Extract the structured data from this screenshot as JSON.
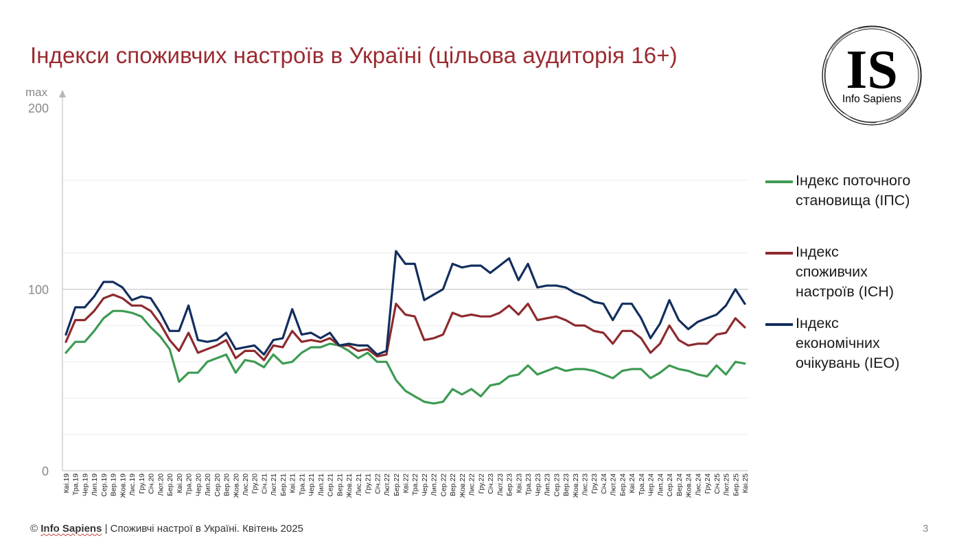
{
  "title": "Індекси споживчих настроїв в Україні (цільова аудиторія 16+)",
  "logo": {
    "text": "IS",
    "subtitle": "Info Sapiens"
  },
  "footer": {
    "brand": "Info Sapiens",
    "rest": " | Споживчі настрої в Україні. Квітень 2025",
    "copyright": "© "
  },
  "page_number": "3",
  "colors": {
    "ips": "#3d9b52",
    "ich": "#8e2a2e",
    "ieo": "#132e5e",
    "title": "#9b2a30"
  },
  "chart_data": {
    "type": "line",
    "ylim": [
      0,
      200
    ],
    "ytick_labels": [
      "200",
      "100",
      "0"
    ],
    "yticks": [
      200,
      100,
      0
    ],
    "gridlines": [
      20,
      40,
      60,
      80,
      120,
      160
    ],
    "y_max_label": "max",
    "legend_position": "right",
    "categories": [
      "Кві.19",
      "Тра.19",
      "Чер.19",
      "Лип.19",
      "Сер.19",
      "Вер.19",
      "Жов.19",
      "Лис.19",
      "Гру.19",
      "Січ.20",
      "Лют.20",
      "Бер.20",
      "Кві.20",
      "Тра.20",
      "Чер.20",
      "Лип.20",
      "Сер.20",
      "Вер.20",
      "Жов.20",
      "Лис.20",
      "Гру.20",
      "Січ.21",
      "Лют.21",
      "Бер.21",
      "Кві.21",
      "Тра.21",
      "Чер.21",
      "Лип.21",
      "Сер.21",
      "Вер.21",
      "Жов.21",
      "Лис.21",
      "Гру.21",
      "Січ.22",
      "Лют.22",
      "Бер.22",
      "Кві.22",
      "Тра.22",
      "Чер.22",
      "Лип.22",
      "Сер.22",
      "Вер.22",
      "Жов.22",
      "Лис.22",
      "Гру.22",
      "Січ.23",
      "Лют.23",
      "Бер.23",
      "Кві.23",
      "Тра.23",
      "Чер.23",
      "Лип.23",
      "Сер.23",
      "Вер.23",
      "Жов.23",
      "Лис.23",
      "Гру.23",
      "Січ.24",
      "Лют.24",
      "Бер.24",
      "Кві.24",
      "Тра.24",
      "Чер.24",
      "Лип.24",
      "Сер.24",
      "Вер.24",
      "Жов.24",
      "Лис.24",
      "Гру.24",
      "Січ.25",
      "Лют.25",
      "Бер.25",
      "Кві.25"
    ],
    "series": [
      {
        "name": "Індекс поточного становища (ІПС)",
        "key": "ips",
        "values": [
          65,
          71,
          71,
          77,
          84,
          88,
          88,
          87,
          85,
          79,
          74,
          67,
          49,
          54,
          54,
          60,
          62,
          64,
          54,
          61,
          60,
          57,
          64,
          59,
          60,
          65,
          68,
          68,
          70,
          69,
          66,
          62,
          65,
          60,
          60,
          50,
          44,
          41,
          38,
          37,
          38,
          45,
          42,
          45,
          41,
          47,
          48,
          52,
          53,
          58,
          53,
          55,
          57,
          55,
          56,
          56,
          55,
          53,
          51,
          55,
          56,
          56,
          51,
          54,
          58,
          56,
          55,
          53,
          52,
          58,
          53,
          60,
          59
        ]
      },
      {
        "name": "Індекс споживчих настроїв (ІСН)",
        "key": "ich",
        "values": [
          71,
          83,
          83,
          88,
          95,
          97,
          95,
          91,
          91,
          88,
          81,
          72,
          66,
          76,
          65,
          67,
          69,
          72,
          62,
          66,
          66,
          61,
          69,
          68,
          77,
          71,
          72,
          71,
          73,
          69,
          69,
          66,
          67,
          63,
          64,
          92,
          86,
          85,
          72,
          73,
          75,
          87,
          85,
          86,
          85,
          85,
          87,
          91,
          86,
          92,
          83,
          84,
          85,
          83,
          80,
          80,
          77,
          76,
          70,
          77,
          77,
          73,
          65,
          70,
          80,
          72,
          69,
          70,
          70,
          75,
          76,
          84,
          79
        ]
      },
      {
        "name": "Індекс економічних очікувань (ІЕО)",
        "key": "ieo",
        "values": [
          75,
          90,
          90,
          96,
          104,
          104,
          101,
          94,
          96,
          95,
          87,
          77,
          77,
          91,
          72,
          71,
          72,
          76,
          67,
          68,
          69,
          64,
          72,
          73,
          89,
          75,
          76,
          73,
          76,
          69,
          70,
          69,
          69,
          64,
          66,
          121,
          114,
          114,
          94,
          97,
          100,
          114,
          112,
          113,
          113,
          109,
          113,
          117,
          105,
          114,
          101,
          102,
          102,
          101,
          98,
          96,
          93,
          92,
          83,
          92,
          92,
          84,
          73,
          81,
          94,
          83,
          78,
          82,
          84,
          86,
          91,
          100,
          92
        ]
      }
    ]
  }
}
